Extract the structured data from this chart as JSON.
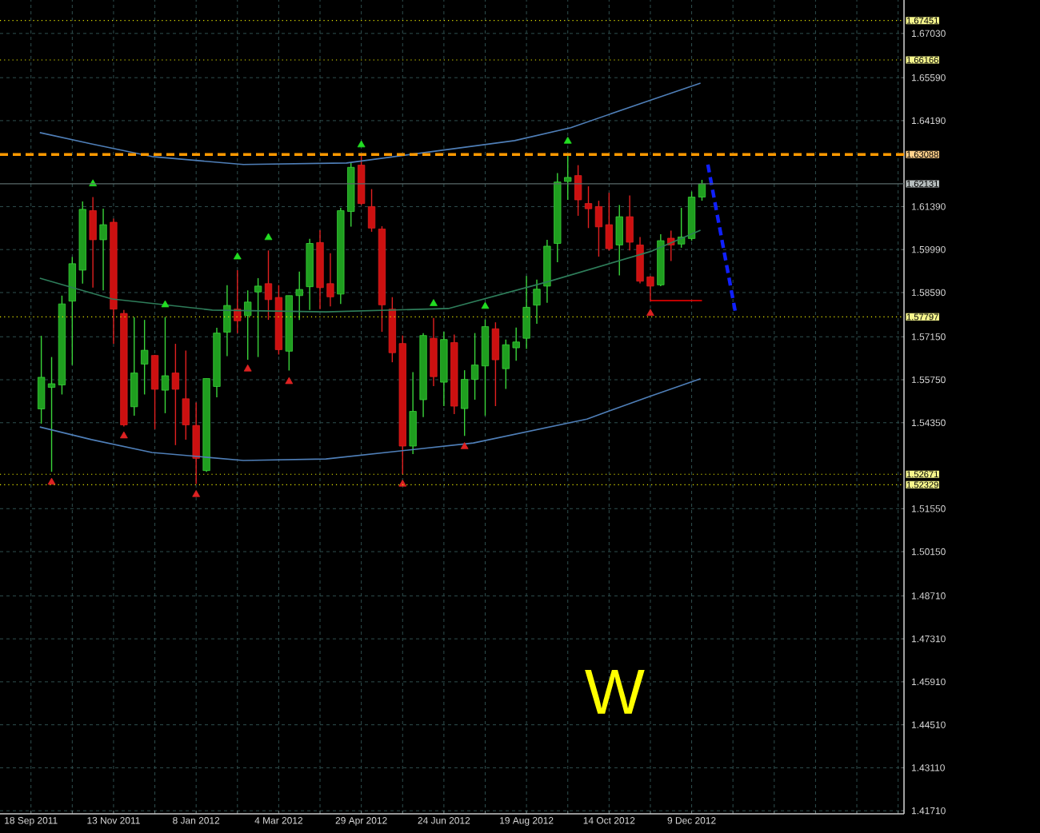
{
  "chart_data": {
    "type": "candlestick",
    "x": [
      "2011-09-25",
      "2011-10-02",
      "2011-10-09",
      "2011-10-16",
      "2011-10-23",
      "2011-10-30",
      "2011-11-06",
      "2011-11-13",
      "2011-11-20",
      "2011-11-27",
      "2011-12-04",
      "2011-12-11",
      "2011-12-18",
      "2011-12-25",
      "2012-01-01",
      "2012-01-08",
      "2012-01-15",
      "2012-01-22",
      "2012-01-29",
      "2012-02-05",
      "2012-02-12",
      "2012-02-19",
      "2012-02-26",
      "2012-03-04",
      "2012-03-11",
      "2012-03-18",
      "2012-03-25",
      "2012-04-01",
      "2012-04-08",
      "2012-04-15",
      "2012-04-22",
      "2012-04-29",
      "2012-05-06",
      "2012-05-13",
      "2012-05-20",
      "2012-05-27",
      "2012-06-03",
      "2012-06-10",
      "2012-06-17",
      "2012-06-24",
      "2012-07-01",
      "2012-07-08",
      "2012-07-15",
      "2012-07-22",
      "2012-07-29",
      "2012-08-05",
      "2012-08-12",
      "2012-08-19",
      "2012-08-26",
      "2012-09-02",
      "2012-09-09",
      "2012-09-16",
      "2012-09-23",
      "2012-09-30",
      "2012-10-07",
      "2012-10-14",
      "2012-10-21",
      "2012-10-28",
      "2012-11-04",
      "2012-11-11",
      "2012-11-18",
      "2012-11-25",
      "2012-12-02",
      "2012-12-09",
      "2012-12-16"
    ],
    "ohlc": [
      [
        1.548,
        1.5718,
        1.5432,
        1.5583
      ],
      [
        1.555,
        1.5649,
        1.5275,
        1.5562
      ],
      [
        1.5558,
        1.5849,
        1.5527,
        1.5822
      ],
      [
        1.5831,
        1.5975,
        1.5623,
        1.5953
      ],
      [
        1.5932,
        1.6156,
        1.5888,
        1.613
      ],
      [
        1.6126,
        1.617,
        1.5875,
        1.6031
      ],
      [
        1.6031,
        1.6132,
        1.5866,
        1.608
      ],
      [
        1.6088,
        1.61,
        1.5692,
        1.5805
      ],
      [
        1.5791,
        1.5802,
        1.5423,
        1.5428
      ],
      [
        1.5487,
        1.5779,
        1.5458,
        1.5597
      ],
      [
        1.5626,
        1.577,
        1.5527,
        1.5671
      ],
      [
        1.5654,
        1.5656,
        1.5414,
        1.5544
      ],
      [
        1.5541,
        1.5779,
        1.5466,
        1.5588
      ],
      [
        1.5597,
        1.5692,
        1.5362,
        1.5544
      ],
      [
        1.5513,
        1.567,
        1.538,
        1.5428
      ],
      [
        1.5426,
        1.5501,
        1.5235,
        1.5319
      ],
      [
        1.5279,
        1.5579,
        1.5275,
        1.5579
      ],
      [
        1.5553,
        1.5744,
        1.5518,
        1.5727
      ],
      [
        1.573,
        1.5883,
        1.5652,
        1.5817
      ],
      [
        1.5805,
        1.5932,
        1.5727,
        1.5767
      ],
      [
        1.5784,
        1.5866,
        1.564,
        1.5828
      ],
      [
        1.5861,
        1.5906,
        1.5649,
        1.588
      ],
      [
        1.5888,
        1.5996,
        1.577,
        1.5836
      ],
      [
        1.5843,
        1.5883,
        1.5657,
        1.5673
      ],
      [
        1.5668,
        1.5849,
        1.5605,
        1.5849
      ],
      [
        1.5849,
        1.5927,
        1.577,
        1.5869
      ],
      [
        1.5878,
        1.6034,
        1.5802,
        1.6019
      ],
      [
        1.6022,
        1.6062,
        1.5805,
        1.5875
      ],
      [
        1.5888,
        1.5987,
        1.5814,
        1.5845
      ],
      [
        1.5854,
        1.6135,
        1.5822,
        1.6126
      ],
      [
        1.6123,
        1.6283,
        1.6074,
        1.6267
      ],
      [
        1.6274,
        1.6309,
        1.6144,
        1.6149
      ],
      [
        1.6139,
        1.6196,
        1.6057,
        1.6069
      ],
      [
        1.6066,
        1.6075,
        1.5731,
        1.5819
      ],
      [
        1.5805,
        1.5844,
        1.5632,
        1.5663
      ],
      [
        1.5693,
        1.5719,
        1.5267,
        1.5359
      ],
      [
        1.5359,
        1.56,
        1.5333,
        1.5472
      ],
      [
        1.551,
        1.5727,
        1.5453,
        1.5719
      ],
      [
        1.571,
        1.5776,
        1.5554,
        1.5585
      ],
      [
        1.5567,
        1.5731,
        1.5489,
        1.5706
      ],
      [
        1.5696,
        1.5722,
        1.5463,
        1.5489
      ],
      [
        1.5481,
        1.5606,
        1.5392,
        1.5576
      ],
      [
        1.5576,
        1.5727,
        1.551,
        1.5623
      ],
      [
        1.562,
        1.5771,
        1.5458,
        1.5748
      ],
      [
        1.5741,
        1.5762,
        1.5489,
        1.564
      ],
      [
        1.5611,
        1.5706,
        1.5545,
        1.5689
      ],
      [
        1.5679,
        1.5745,
        1.5637,
        1.5698
      ],
      [
        1.571,
        1.5913,
        1.5675,
        1.5811
      ],
      [
        1.5818,
        1.5901,
        1.5757,
        1.587
      ],
      [
        1.588,
        1.6031,
        1.5826,
        1.601
      ],
      [
        1.6019,
        1.6248,
        1.5958,
        1.6219
      ],
      [
        1.6221,
        1.6309,
        1.6161,
        1.6234
      ],
      [
        1.624,
        1.6274,
        1.6109,
        1.6161
      ],
      [
        1.6149,
        1.6205,
        1.6069,
        1.6132
      ],
      [
        1.6139,
        1.6158,
        1.5976,
        1.6073
      ],
      [
        1.608,
        1.6184,
        1.5996,
        1.6002
      ],
      [
        1.6014,
        1.6144,
        1.5915,
        1.6106
      ],
      [
        1.6106,
        1.6175,
        1.5996,
        1.6023
      ],
      [
        1.6014,
        1.604,
        1.5889,
        1.5896
      ],
      [
        1.591,
        1.5913,
        1.5831,
        1.588
      ],
      [
        1.5884,
        1.6049,
        1.588,
        1.6028
      ],
      [
        1.6036,
        1.6061,
        1.5962,
        1.6014
      ],
      [
        1.6017,
        1.6135,
        1.6005,
        1.604
      ],
      [
        1.6035,
        1.6188,
        1.6028,
        1.617
      ],
      [
        1.617,
        1.6226,
        1.6158,
        1.6213
      ]
    ],
    "series": [
      {
        "type": "line",
        "color": "#4f7fb8",
        "marker": "none",
        "line_style": "solid",
        "x": [
          "2011-09-24",
          "2011-10-29",
          "2011-12-09",
          "2012-02-09",
          "2012-04-19",
          "2012-08-11",
          "2012-09-18",
          "2012-11-10",
          "2012-12-15"
        ],
        "values": [
          1.638,
          1.6343,
          1.6302,
          1.6276,
          1.6281,
          1.6354,
          1.6396,
          1.6484,
          1.6541
        ]
      },
      {
        "type": "line",
        "color": "#2e7d5a",
        "marker": "none",
        "line_style": "solid",
        "x": [
          "2011-09-24",
          "2011-11-12",
          "2012-01-19",
          "2012-04-05",
          "2012-06-27",
          "2012-09-03",
          "2012-11-12",
          "2012-12-15"
        ],
        "values": [
          1.5906,
          1.5838,
          1.5802,
          1.5796,
          1.5807,
          1.5895,
          1.5994,
          1.6062
        ]
      },
      {
        "type": "line",
        "color": "#4f7fb8",
        "marker": "none",
        "line_style": "solid",
        "x": [
          "2011-09-24",
          "2011-10-29",
          "2011-12-09",
          "2012-02-09",
          "2012-04-05",
          "2012-07-14",
          "2012-09-29",
          "2012-11-10",
          "2012-12-15"
        ],
        "values": [
          1.5421,
          1.538,
          1.5338,
          1.5312,
          1.5317,
          1.5369,
          1.5447,
          1.552,
          1.5578
        ]
      },
      {
        "type": "scatter",
        "color": "#22dd22",
        "marker": "triangle",
        "x": [
          "2011-10-30",
          "2011-12-18",
          "2012-02-05",
          "2012-02-26",
          "2012-04-29",
          "2012-06-17",
          "2012-07-22",
          "2012-09-16"
        ],
        "values": [
          1.6213,
          1.5819,
          1.5975,
          1.6038,
          1.634,
          1.5823,
          1.5814,
          1.6352
        ]
      },
      {
        "type": "scatter",
        "color": "#dd2222",
        "marker": "triangle",
        "x": [
          "2011-10-02",
          "2011-11-20",
          "2012-01-08",
          "2012-02-12",
          "2012-03-11",
          "2012-05-27",
          "2012-07-08",
          "2012-11-11"
        ],
        "values": [
          1.5241,
          1.5392,
          1.5201,
          1.561,
          1.5569,
          1.5235,
          1.5357,
          1.5791
        ]
      },
      {
        "type": "line",
        "color": "#ff0000",
        "marker": "none",
        "line_style": "solid",
        "x": [
          "2012-11-11",
          "2012-12-16"
        ],
        "values": [
          1.5833,
          1.5833
        ]
      },
      {
        "type": "line",
        "color": "#1020ff",
        "marker": "none",
        "line_style": "dashed",
        "x": [
          "2012-12-20",
          "2013-01-08"
        ],
        "values": [
          1.6276,
          1.5786
        ]
      }
    ],
    "ref_lines": [
      {
        "axis": "y",
        "value": 1.67451,
        "label": "1.67451",
        "color": "#e8e800",
        "line_style": "dotted"
      },
      {
        "axis": "y",
        "value": 1.66166,
        "label": "1.66166",
        "color": "#e8e800",
        "line_style": "dotted"
      },
      {
        "axis": "y",
        "value": 1.63088,
        "label": "1.63088",
        "color": "#ff9900",
        "line_style": "dashed"
      },
      {
        "axis": "y",
        "value": 1.62131,
        "label": "1.62131",
        "color": "#5a6a6a",
        "line_style": "solid"
      },
      {
        "axis": "y",
        "value": 1.57797,
        "label": "1.57797",
        "color": "#e8e800",
        "line_style": "dotted"
      },
      {
        "axis": "y",
        "value": 1.52671,
        "label": "1.52671",
        "color": "#e8e800",
        "line_style": "dotted"
      },
      {
        "axis": "y",
        "value": 1.52329,
        "label": "1.52329",
        "color": "#e8e800",
        "line_style": "dotted"
      }
    ],
    "annotations": [
      "W"
    ],
    "xlim": [
      "2011-08-28",
      "2013-05-02"
    ],
    "ylim": [
      1.4161,
      1.6812
    ],
    "xticks": [
      {
        "value": "2011-09-18",
        "label": "18 Sep 2011"
      },
      {
        "value": "2011-10-16",
        "label": null
      },
      {
        "value": "2011-11-13",
        "label": "13 Nov 2011"
      },
      {
        "value": "2011-12-11",
        "label": null
      },
      {
        "value": "2012-01-08",
        "label": "8 Jan 2012"
      },
      {
        "value": "2012-02-05",
        "label": null
      },
      {
        "value": "2012-03-04",
        "label": "4 Mar 2012"
      },
      {
        "value": "2012-04-01",
        "label": null
      },
      {
        "value": "2012-04-29",
        "label": "29 Apr 2012"
      },
      {
        "value": "2012-05-27",
        "label": null
      },
      {
        "value": "2012-06-24",
        "label": "24 Jun 2012"
      },
      {
        "value": "2012-07-22",
        "label": null
      },
      {
        "value": "2012-08-19",
        "label": "19 Aug 2012"
      },
      {
        "value": "2012-09-16",
        "label": null
      },
      {
        "value": "2012-10-14",
        "label": "14 Oct 2012"
      },
      {
        "value": "2012-11-11",
        "label": null
      },
      {
        "value": "2012-12-09",
        "label": "9 Dec 2012"
      },
      {
        "value": "2013-01-06",
        "label": null
      },
      {
        "value": "2013-02-03",
        "label": null
      },
      {
        "value": "2013-03-03",
        "label": null
      },
      {
        "value": "2013-03-31",
        "label": null
      },
      {
        "value": "2013-04-28",
        "label": null
      }
    ],
    "yticks": [
      {
        "value": 1.4171,
        "label": "1.41710"
      },
      {
        "value": 1.4311,
        "label": "1.43110"
      },
      {
        "value": 1.4451,
        "label": "1.44510"
      },
      {
        "value": 1.4591,
        "label": "1.45910"
      },
      {
        "value": 1.4731,
        "label": "1.47310"
      },
      {
        "value": 1.4871,
        "label": "1.48710"
      },
      {
        "value": 1.5015,
        "label": "1.50150"
      },
      {
        "value": 1.5155,
        "label": "1.51550"
      },
      {
        "value": 1.5435,
        "label": "1.54350"
      },
      {
        "value": 1.5575,
        "label": "1.55750"
      },
      {
        "value": 1.5715,
        "label": "1.57150"
      },
      {
        "value": 1.5859,
        "label": "1.58590"
      },
      {
        "value": 1.5999,
        "label": "1.59990"
      },
      {
        "value": 1.6139,
        "label": "1.61390"
      },
      {
        "value": 1.6419,
        "label": "1.64190"
      },
      {
        "value": 1.6559,
        "label": "1.65590"
      },
      {
        "value": 1.6703,
        "label": "1.67030"
      }
    ],
    "grid": true
  }
}
